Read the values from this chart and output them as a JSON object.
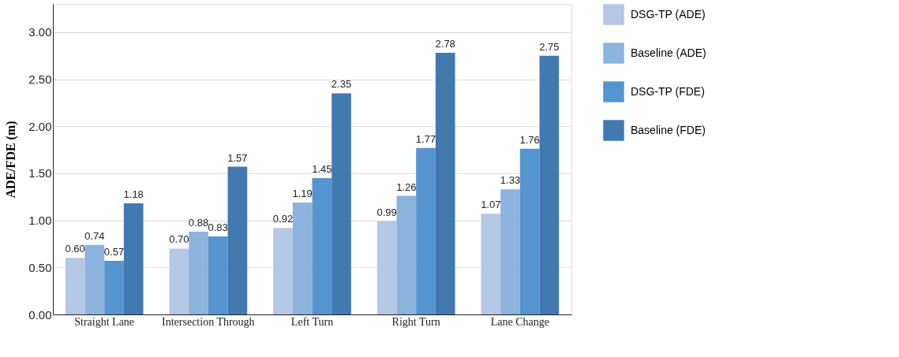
{
  "chart_data": {
    "type": "bar",
    "ylabel": "ADE/FDE  (m)",
    "categories": [
      "Straight Lane",
      "Intersection Through",
      "Left Turn",
      "Right Turn",
      "Lane Change"
    ],
    "series": [
      {
        "name": "DSG-TP (ADE)",
        "color": "#b4c7e4",
        "values": [
          0.6,
          0.7,
          0.92,
          0.99,
          1.07
        ],
        "value_labels": [
          "0.60",
          "0.70",
          "0.92",
          "0.99",
          "1.07"
        ]
      },
      {
        "name": "Baseline (ADE)",
        "color": "#8cb2de",
        "values": [
          0.74,
          0.88,
          1.19,
          1.26,
          1.33
        ],
        "value_labels": [
          "0.74",
          "0.88",
          "1.19",
          "1.26",
          "1.33"
        ]
      },
      {
        "name": "DSG-TP (FDE)",
        "color": "#5694d0",
        "values": [
          0.57,
          0.83,
          1.45,
          1.77,
          1.76
        ],
        "value_labels": [
          "0.57",
          "0.83",
          "1.45",
          "1.77",
          "1.76"
        ]
      },
      {
        "name": "Baseline (FDE)",
        "color": "#4279af",
        "values": [
          1.18,
          1.57,
          2.35,
          2.78,
          2.75
        ],
        "value_labels": [
          "1.18",
          "1.57",
          "2.35",
          "2.78",
          "2.75"
        ]
      }
    ],
    "ylim": [
      0,
      3.3
    ],
    "yticks": [
      {
        "value": 0,
        "label": "0.00"
      },
      {
        "value": 0.5,
        "label": "0.50"
      },
      {
        "value": 1,
        "label": "1.00"
      },
      {
        "value": 1.5,
        "label": "1.50"
      },
      {
        "value": 2,
        "label": "2.00"
      },
      {
        "value": 2.5,
        "label": "2.50"
      },
      {
        "value": 3,
        "label": "3.00"
      }
    ],
    "grid": "y",
    "legend": "right"
  }
}
